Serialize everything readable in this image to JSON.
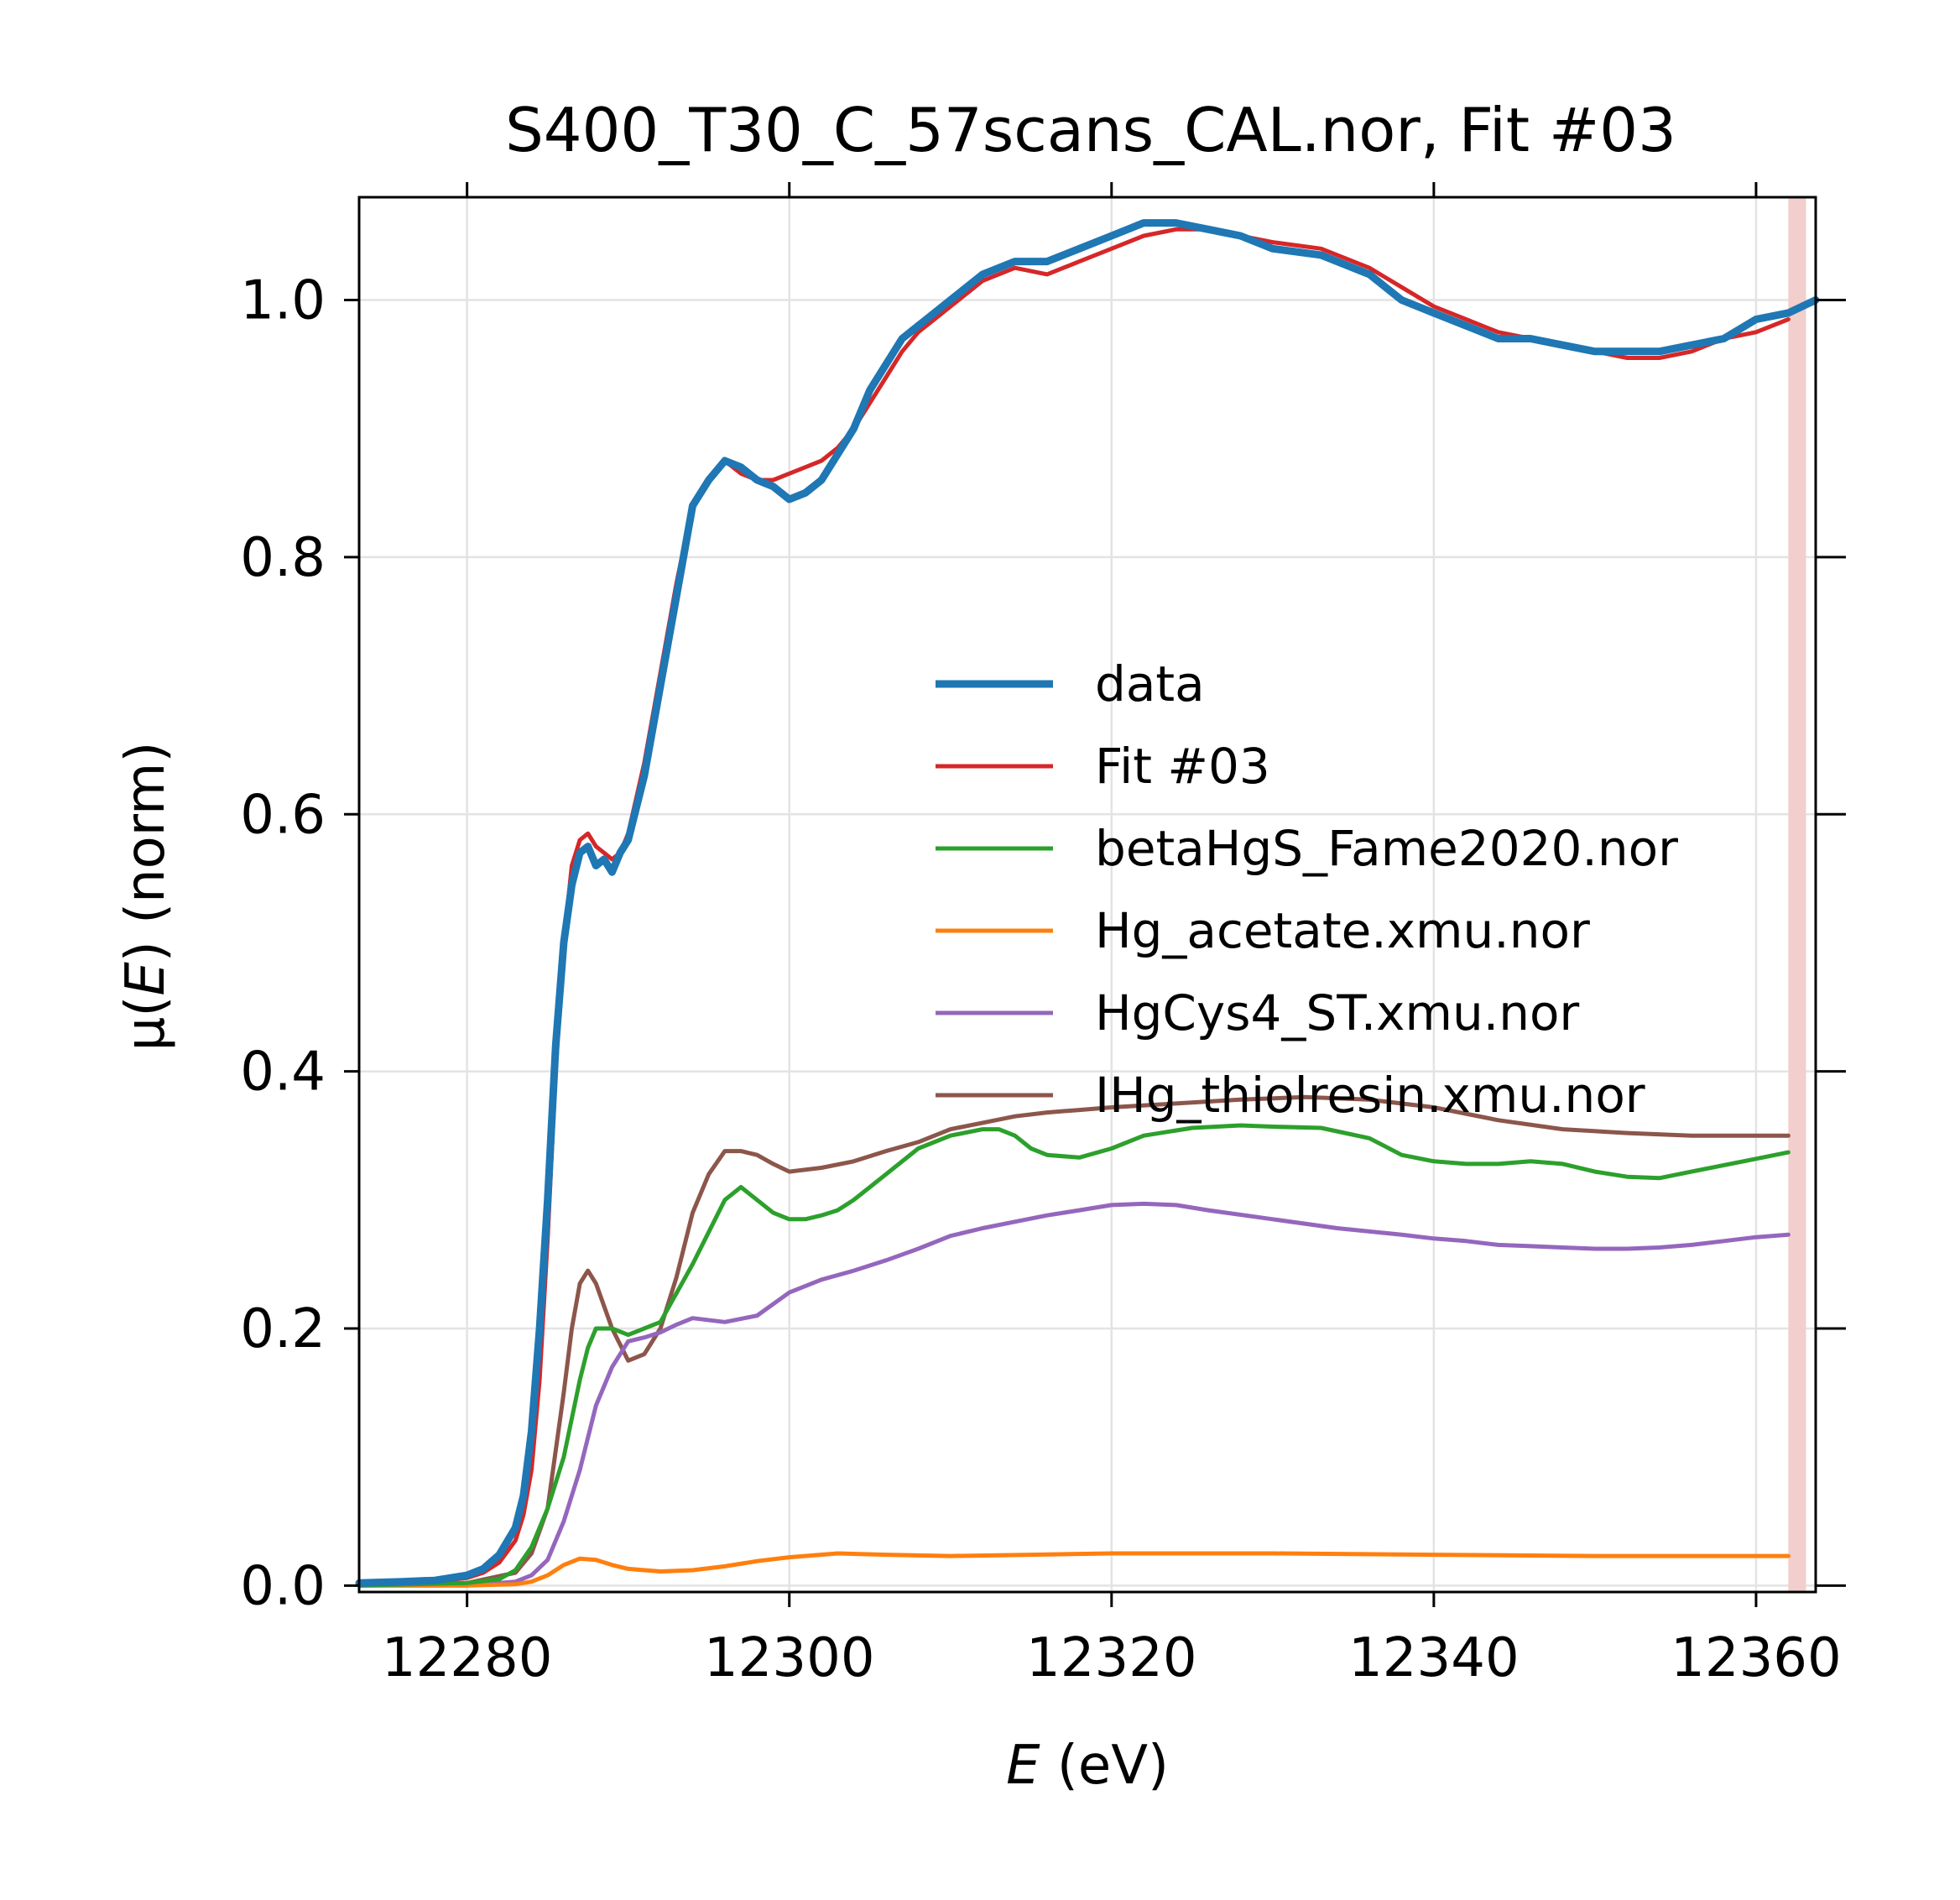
{
  "chart_data": {
    "type": "line",
    "title": "S400_T30_C_57scans_CAL.nor, Fit #03",
    "xlabel": {
      "italic": "E",
      "rest": " (eV)"
    },
    "ylabel": {
      "prefix": "μ(",
      "italic": "E",
      "suffix": ") (norm)"
    },
    "xlim": [
      12273.3,
      12363.7
    ],
    "ylim": [
      -0.005,
      1.08
    ],
    "xticks": [
      12280,
      12300,
      12320,
      12340,
      12360
    ],
    "yticks": [
      0.0,
      0.2,
      0.4,
      0.6,
      0.8,
      1.0
    ],
    "xtick_labels": [
      "12280",
      "12300",
      "12320",
      "12340",
      "12360"
    ],
    "ytick_labels": [
      "0.0",
      "0.2",
      "0.4",
      "0.6",
      "0.8",
      "1.0"
    ],
    "grid": true,
    "legend_position": "center-right",
    "fit_range_marker": {
      "x": [
        12362.0,
        12363.1
      ],
      "color": "#f2cfcc"
    },
    "series": [
      {
        "name": "data",
        "color": "#1f77b4",
        "x": [
          12273.3,
          12276,
          12278,
          12280,
          12281,
          12282,
          12283,
          12283.5,
          12284,
          12284.5,
          12285,
          12285.5,
          12286,
          12286.5,
          12287,
          12287.5,
          12288,
          12288.5,
          12289,
          12289.5,
          12290,
          12291,
          12292,
          12293,
          12294,
          12295,
          12296,
          12297,
          12298,
          12299,
          12300,
          12301,
          12302,
          12303,
          12304,
          12305,
          12306,
          12307,
          12308,
          12309,
          12310,
          12312,
          12314,
          12316,
          12318,
          12320,
          12322,
          12324,
          12326,
          12328,
          12330,
          12333,
          12336,
          12338,
          12340,
          12342,
          12344,
          12346,
          12348,
          12350,
          12352,
          12354,
          12356,
          12358,
          12360,
          12362,
          12363.7
        ],
        "values": [
          0.002,
          0.003,
          0.004,
          0.008,
          0.013,
          0.024,
          0.045,
          0.07,
          0.12,
          0.2,
          0.3,
          0.42,
          0.5,
          0.545,
          0.57,
          0.575,
          0.56,
          0.565,
          0.555,
          0.57,
          0.58,
          0.63,
          0.7,
          0.77,
          0.84,
          0.86,
          0.875,
          0.87,
          0.86,
          0.855,
          0.845,
          0.85,
          0.86,
          0.88,
          0.9,
          0.93,
          0.95,
          0.97,
          0.98,
          0.99,
          1.0,
          1.02,
          1.03,
          1.03,
          1.04,
          1.05,
          1.06,
          1.06,
          1.055,
          1.05,
          1.04,
          1.035,
          1.02,
          1.0,
          0.99,
          0.98,
          0.97,
          0.97,
          0.965,
          0.96,
          0.96,
          0.96,
          0.965,
          0.97,
          0.985,
          0.99,
          1.0
        ]
      },
      {
        "name": "Fit #03",
        "color": "#d62728",
        "x": [
          12273.3,
          12276,
          12278,
          12280,
          12281,
          12282,
          12283,
          12283.5,
          12284,
          12284.5,
          12285,
          12285.5,
          12286,
          12286.5,
          12287,
          12287.5,
          12288,
          12288.5,
          12289,
          12289.5,
          12290,
          12291,
          12292,
          12293,
          12294,
          12295,
          12296,
          12297,
          12298,
          12299,
          12300,
          12301,
          12302,
          12303,
          12304,
          12305,
          12306,
          12307,
          12308,
          12309,
          12310,
          12312,
          12314,
          12316,
          12318,
          12320,
          12322,
          12324,
          12326,
          12328,
          12330,
          12333,
          12336,
          12338,
          12340,
          12342,
          12344,
          12346,
          12348,
          12350,
          12352,
          12354,
          12356,
          12358,
          12360,
          12362
        ],
        "values": [
          0.001,
          0.002,
          0.003,
          0.006,
          0.01,
          0.018,
          0.035,
          0.055,
          0.09,
          0.16,
          0.27,
          0.4,
          0.5,
          0.56,
          0.58,
          0.585,
          0.575,
          0.57,
          0.565,
          0.57,
          0.585,
          0.64,
          0.71,
          0.78,
          0.84,
          0.86,
          0.875,
          0.865,
          0.86,
          0.86,
          0.865,
          0.87,
          0.875,
          0.885,
          0.9,
          0.92,
          0.94,
          0.96,
          0.975,
          0.985,
          0.995,
          1.015,
          1.025,
          1.02,
          1.03,
          1.04,
          1.05,
          1.055,
          1.055,
          1.05,
          1.045,
          1.04,
          1.025,
          1.01,
          0.995,
          0.985,
          0.975,
          0.97,
          0.965,
          0.96,
          0.955,
          0.955,
          0.96,
          0.97,
          0.975,
          0.985
        ]
      },
      {
        "name": "betaHgS_Fame2020.nor",
        "color": "#2ca02c",
        "x": [
          12273.3,
          12280,
          12282,
          12283,
          12284,
          12285,
          12286,
          12287,
          12287.5,
          12288,
          12289,
          12290,
          12292,
          12294,
          12296,
          12297,
          12298,
          12299,
          12300,
          12301,
          12302,
          12303,
          12304,
          12305,
          12306,
          12308,
          12310,
          12312,
          12313,
          12314,
          12315,
          12316,
          12318,
          12320,
          12322,
          12325,
          12328,
          12330,
          12333,
          12336,
          12338,
          12340,
          12342,
          12344,
          12346,
          12348,
          12350,
          12352,
          12354,
          12356,
          12358,
          12360,
          12362
        ],
        "values": [
          0.0,
          0.002,
          0.005,
          0.012,
          0.03,
          0.06,
          0.1,
          0.16,
          0.185,
          0.2,
          0.2,
          0.195,
          0.205,
          0.25,
          0.3,
          0.31,
          0.3,
          0.29,
          0.285,
          0.285,
          0.288,
          0.292,
          0.3,
          0.31,
          0.32,
          0.34,
          0.35,
          0.355,
          0.355,
          0.35,
          0.34,
          0.335,
          0.333,
          0.34,
          0.35,
          0.356,
          0.358,
          0.357,
          0.356,
          0.348,
          0.335,
          0.33,
          0.328,
          0.328,
          0.33,
          0.328,
          0.322,
          0.318,
          0.317,
          0.322,
          0.327,
          0.332,
          0.337
        ]
      },
      {
        "name": "Hg_acetate.xmu.nor",
        "color": "#ff7f0e",
        "x": [
          12273.3,
          12280,
          12283,
          12284,
          12285,
          12286,
          12287,
          12288,
          12289,
          12290,
          12292,
          12294,
          12296,
          12298,
          12300,
          12303,
          12306,
          12310,
          12315,
          12320,
          12330,
          12340,
          12350,
          12362
        ],
        "values": [
          0.0,
          0.0,
          0.001,
          0.003,
          0.008,
          0.016,
          0.021,
          0.02,
          0.016,
          0.013,
          0.011,
          0.012,
          0.015,
          0.019,
          0.022,
          0.025,
          0.024,
          0.023,
          0.024,
          0.025,
          0.025,
          0.024,
          0.023,
          0.023
        ]
      },
      {
        "name": "HgCys4_ST.xmu.nor",
        "color": "#9467bd",
        "x": [
          12273.3,
          12280,
          12283,
          12284,
          12285,
          12286,
          12287,
          12288,
          12289,
          12290,
          12291,
          12292,
          12293,
          12294,
          12296,
          12298,
          12300,
          12302,
          12304,
          12306,
          12308,
          12310,
          12312,
          12314,
          12316,
          12318,
          12320,
          12322,
          12324,
          12326,
          12330,
          12334,
          12338,
          12340,
          12342,
          12344,
          12346,
          12348,
          12350,
          12352,
          12354,
          12356,
          12358,
          12360,
          12362
        ],
        "values": [
          0.0,
          0.0,
          0.003,
          0.008,
          0.02,
          0.05,
          0.09,
          0.14,
          0.17,
          0.19,
          0.193,
          0.197,
          0.203,
          0.208,
          0.205,
          0.21,
          0.228,
          0.238,
          0.245,
          0.253,
          0.262,
          0.272,
          0.278,
          0.283,
          0.288,
          0.292,
          0.296,
          0.297,
          0.296,
          0.292,
          0.285,
          0.278,
          0.273,
          0.27,
          0.268,
          0.265,
          0.264,
          0.263,
          0.262,
          0.262,
          0.263,
          0.265,
          0.268,
          0.271,
          0.273
        ]
      },
      {
        "name": "IHg_thiolresin.xmu.nor",
        "color": "#8c564b",
        "x": [
          12273.3,
          12280,
          12283,
          12284,
          12285,
          12286,
          12286.5,
          12287,
          12287.5,
          12288,
          12289,
          12290,
          12291,
          12292,
          12293,
          12294,
          12295,
          12296,
          12297,
          12298,
          12299,
          12300,
          12302,
          12304,
          12306,
          12308,
          12310,
          12312,
          12314,
          12316,
          12318,
          12320,
          12324,
          12328,
          12332,
          12336,
          12340,
          12344,
          12348,
          12352,
          12356,
          12360,
          12362
        ],
        "values": [
          0.0,
          0.002,
          0.01,
          0.025,
          0.06,
          0.15,
          0.2,
          0.235,
          0.245,
          0.235,
          0.2,
          0.175,
          0.18,
          0.2,
          0.24,
          0.29,
          0.32,
          0.338,
          0.338,
          0.335,
          0.328,
          0.322,
          0.325,
          0.33,
          0.338,
          0.345,
          0.355,
          0.36,
          0.365,
          0.368,
          0.37,
          0.372,
          0.375,
          0.378,
          0.38,
          0.378,
          0.372,
          0.362,
          0.355,
          0.352,
          0.35,
          0.35,
          0.35
        ]
      }
    ]
  }
}
